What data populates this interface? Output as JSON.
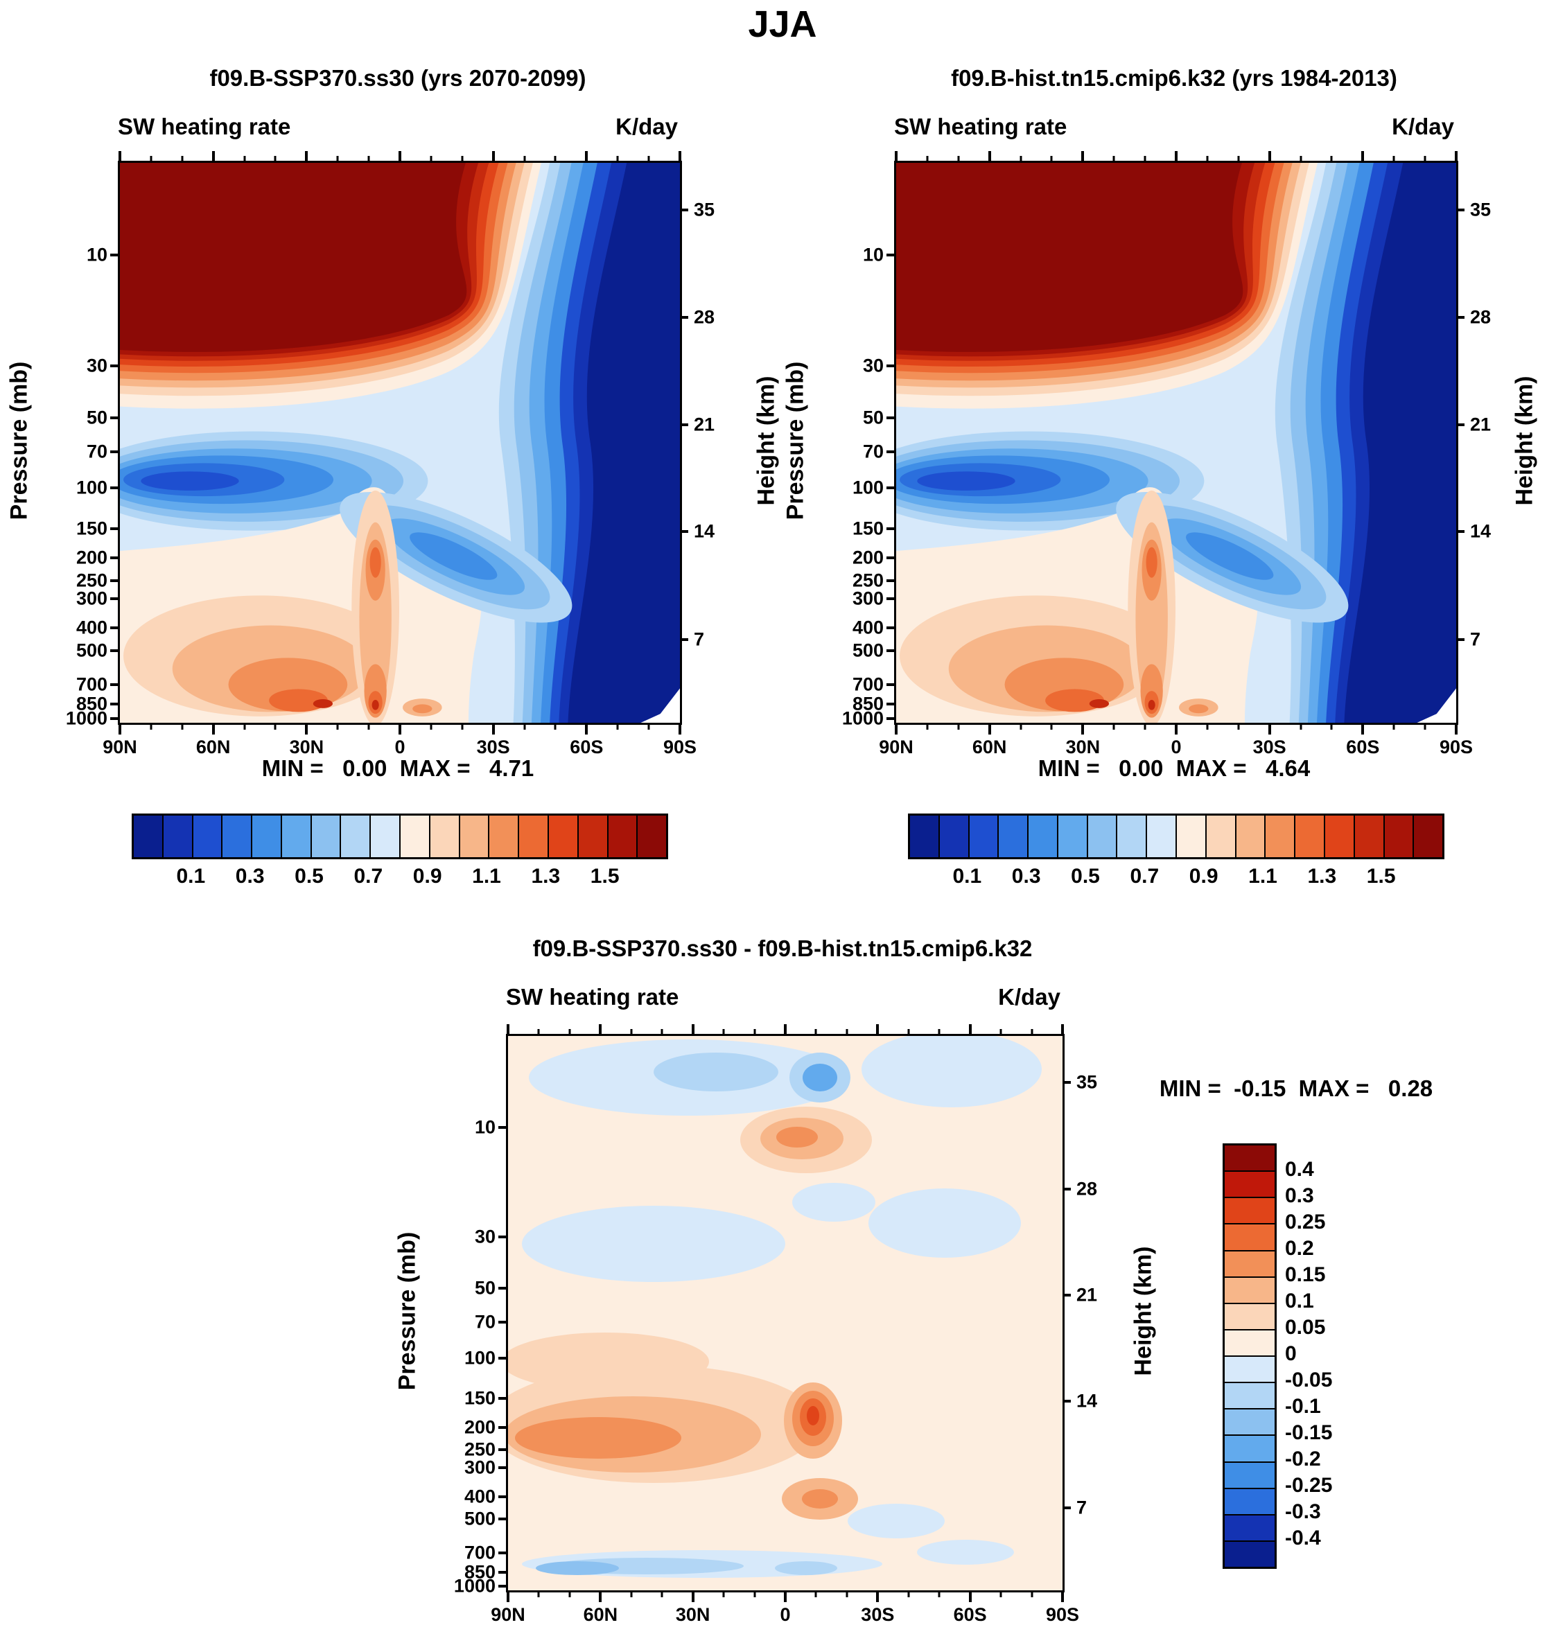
{
  "page": {
    "title": "JJA"
  },
  "panels": [
    {
      "title": "f09.B-SSP370.ss30 (yrs 2070-2099)",
      "subtitle_left": "SW heating rate",
      "subtitle_right": "K/day",
      "ylabel": "Pressure (mb)",
      "ylabel_right": "Height (km)",
      "stats": "MIN =   0.00  MAX =   4.71",
      "colorbar_labels": [
        "0.1",
        "0.3",
        "0.5",
        "0.7",
        "0.9",
        "1.1",
        "1.3",
        "1.5"
      ]
    },
    {
      "title": "f09.B-hist.tn15.cmip6.k32 (yrs 1984-2013)",
      "subtitle_left": "SW heating rate",
      "subtitle_right": "K/day",
      "ylabel": "Pressure (mb)",
      "ylabel_right": "Height (km)",
      "stats": "MIN =   0.00  MAX =   4.64",
      "colorbar_labels": [
        "0.1",
        "0.3",
        "0.5",
        "0.7",
        "0.9",
        "1.1",
        "1.3",
        "1.5"
      ]
    }
  ],
  "diff_panel": {
    "title": "f09.B-SSP370.ss30 - f09.B-hist.tn15.cmip6.k32",
    "subtitle_left": "SW heating rate",
    "subtitle_right": "K/day",
    "ylabel": "Pressure (mb)",
    "ylabel_right": "Height (km)",
    "stats": "MIN =  -0.15  MAX =   0.28",
    "colorbar_labels": [
      "0.4",
      "0.3",
      "0.25",
      "0.2",
      "0.15",
      "0.1",
      "0.05",
      "0",
      "-0.05",
      "-0.1",
      "-0.15",
      "-0.2",
      "-0.25",
      "-0.3",
      "-0.4"
    ]
  },
  "axes": {
    "pressure_ticks": [
      "10",
      "30",
      "50",
      "70",
      "100",
      "150",
      "200",
      "250",
      "300",
      "400",
      "500",
      "700",
      "850",
      "1000"
    ],
    "height_ticks": [
      "35",
      "28",
      "21",
      "14",
      "7"
    ],
    "lat_ticks": [
      "90N",
      "60N",
      "30N",
      "0",
      "30S",
      "60S",
      "90S"
    ]
  },
  "colors": {
    "levels18": [
      "#0a1f8f",
      "#1433b3",
      "#1e4fd0",
      "#2b6fdd",
      "#3f8ee6",
      "#62aaed",
      "#8cc1f0",
      "#b2d6f5",
      "#d7e9fa",
      "#fdeee0",
      "#fbd6b9",
      "#f7b689",
      "#f29058",
      "#ec6a33",
      "#e04419",
      "#c62a0e",
      "#a81408",
      "#8c0a06"
    ],
    "diff16": [
      "#8c0a06",
      "#c0180a",
      "#e04419",
      "#ec6a33",
      "#f29058",
      "#f7b689",
      "#fbd6b9",
      "#fdeee0",
      "#d7e9fa",
      "#b2d6f5",
      "#8cc1f0",
      "#62aaed",
      "#3f8ee6",
      "#2b6fdd",
      "#1433b3",
      "#0a1f8f"
    ]
  },
  "chart_data": {
    "type": "heatmap",
    "season": "JJA",
    "variable": "SW heating rate",
    "units": "K/day",
    "x_axis": {
      "label": "latitude",
      "ticks": [
        "90N",
        "60N",
        "30N",
        "0",
        "30S",
        "60S",
        "90S"
      ]
    },
    "y_axis_left": {
      "label": "Pressure (mb)",
      "scale": "log",
      "direction": "increasing-downward",
      "ticks": [
        10,
        30,
        50,
        70,
        100,
        150,
        200,
        250,
        300,
        400,
        500,
        700,
        850,
        1000
      ]
    },
    "y_axis_right": {
      "label": "Height (km)",
      "ticks": [
        35,
        28,
        21,
        14,
        7
      ]
    },
    "panels": [
      {
        "name": "f09.B-SSP370.ss30",
        "years": "2070-2099",
        "min": 0.0,
        "max": 4.71,
        "contour_levels": [
          0,
          0.1,
          0.2,
          0.3,
          0.4,
          0.5,
          0.6,
          0.7,
          0.8,
          0.9,
          1.0,
          1.1,
          1.2,
          1.3,
          1.4,
          1.5,
          1.6
        ]
      },
      {
        "name": "f09.B-hist.tn15.cmip6.k32",
        "years": "1984-2013",
        "min": 0.0,
        "max": 4.64,
        "contour_levels": [
          0,
          0.1,
          0.2,
          0.3,
          0.4,
          0.5,
          0.6,
          0.7,
          0.8,
          0.9,
          1.0,
          1.1,
          1.2,
          1.3,
          1.4,
          1.5,
          1.6
        ]
      },
      {
        "name": "f09.B-SSP370.ss30 - f09.B-hist.tn15.cmip6.k32",
        "min": -0.15,
        "max": 0.28,
        "contour_levels": [
          -0.4,
          -0.3,
          -0.25,
          -0.2,
          -0.15,
          -0.1,
          -0.05,
          0,
          0.05,
          0.1,
          0.15,
          0.2,
          0.25,
          0.3,
          0.4
        ]
      }
    ],
    "description": "Zonal-mean shortwave heating rate (latitude vs pressure). Strong heating (>1.6 K/day, dark red) fills the upper stratosphere except the dark-blue polar-night region poleward of ~55S; blues (<0.5 K/day) occupy the lower stratosphere and SH high latitudes; tropospheric maxima (~0.9-1.5 K/day) occur near the surface between 30N and the equator with a convective plume near 5-10N reaching ~150 mb. The difference panel is mostly +0 to +0.2 K/day with a maximum of +0.28 near the tropical tropopause (150-200 mb) and small negatives near 850 mb and in the stratosphere."
  }
}
